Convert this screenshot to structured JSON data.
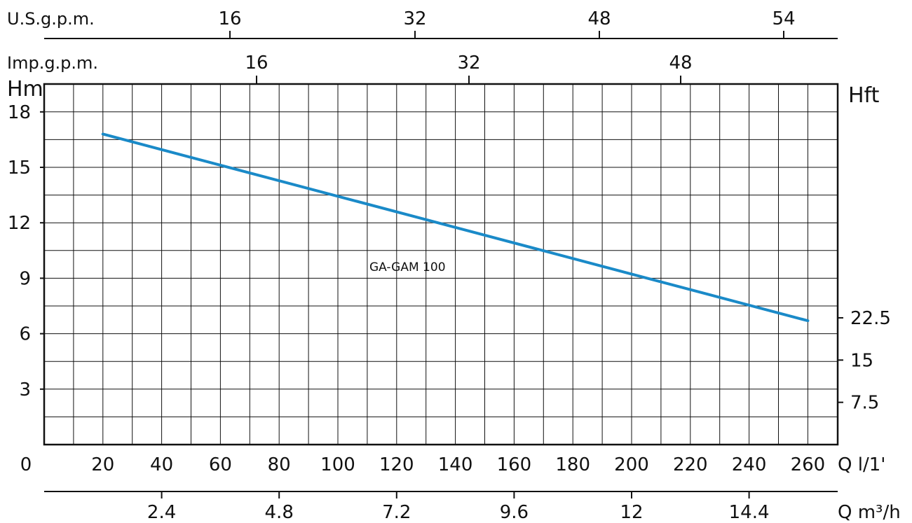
{
  "chart_data": {
    "type": "line",
    "x_unit": "Q l/1'",
    "x_ticks": [
      0,
      20,
      40,
      60,
      80,
      100,
      120,
      140,
      160,
      180,
      200,
      220,
      240,
      260
    ],
    "xlim": [
      0,
      270
    ],
    "y_unit": "Hm",
    "y_ticks": [
      3,
      6,
      9,
      12,
      15,
      18
    ],
    "ylim": [
      0,
      19.5
    ],
    "right_axis_unit": "Hft",
    "right_axis_ticks": [
      "7.5",
      "15",
      "22.5"
    ],
    "usgpm_unit": "U.S.g.p.m.",
    "usgpm_ticks": [
      "16",
      "32",
      "48",
      "54"
    ],
    "impgpm_unit": "Imp.g.p.m.",
    "impgpm_ticks": [
      "16",
      "32",
      "48"
    ],
    "m3h_unit": "Q m³/h",
    "m3h_ticks": [
      "2.4",
      "4.8",
      "7.2",
      "9.6",
      "12",
      "14.4"
    ],
    "grid": true,
    "series": [
      {
        "name": "GA-GAM 100",
        "color": "#1a8ac8",
        "x": [
          20,
          260
        ],
        "y": [
          16.8,
          6.7
        ]
      }
    ]
  }
}
